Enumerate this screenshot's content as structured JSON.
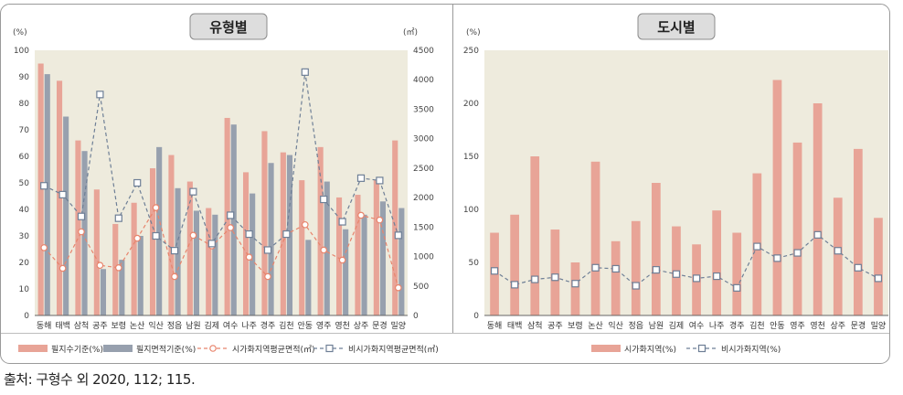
{
  "source_note": "출처: 구형수 외 2020, 112; 115.",
  "colors": {
    "bar_a": "#E8A497",
    "bar_b": "#97A0AE",
    "line_a": "#E8846C",
    "line_b": "#6E7F96",
    "plot_bg": "#EEEBDD",
    "border": "#999999"
  },
  "chart_data": [
    {
      "type": "bar",
      "title": "유형별",
      "y_unit_left": "(%)",
      "y_unit_right": "(㎡)",
      "ylim": [
        0,
        100
      ],
      "y2lim": [
        0,
        4500
      ],
      "yticks": [
        "0",
        "10",
        "20",
        "30",
        "40",
        "50",
        "60",
        "70",
        "80",
        "90",
        "100"
      ],
      "y2ticks": [
        "0",
        "500",
        "1000",
        "1500",
        "2000",
        "2500",
        "3000",
        "3500",
        "4000",
        "4500"
      ],
      "categories": [
        "동해",
        "태백",
        "삼척",
        "공주",
        "보령",
        "논산",
        "익산",
        "정읍",
        "남원",
        "김제",
        "여수",
        "나주",
        "경주",
        "김천",
        "안동",
        "영주",
        "영천",
        "상주",
        "문경",
        "밀양"
      ],
      "series": [
        {
          "name": "필지수기준(%)",
          "kind": "bar",
          "axis": "left",
          "values": [
            95,
            88.5,
            66,
            47.5,
            34.5,
            42.5,
            55.5,
            60.5,
            50.5,
            40.5,
            74.5,
            54,
            69.5,
            61.5,
            51,
            63.5,
            44.5,
            45.5,
            51,
            66
          ]
        },
        {
          "name": "필지면적기준(%)",
          "kind": "bar",
          "axis": "left",
          "values": [
            91,
            75,
            62,
            17.5,
            21,
            30,
            63.5,
            48,
            39.5,
            38,
            72,
            46,
            57.5,
            60.5,
            28.5,
            50.5,
            32.5,
            38,
            43,
            40.5
          ]
        },
        {
          "name": "시가화지역평균면적(㎡)",
          "kind": "line",
          "axis": "right",
          "values": [
            1150,
            800,
            1420,
            850,
            810,
            1310,
            1830,
            660,
            1360,
            1180,
            1490,
            990,
            660,
            1380,
            1540,
            1110,
            940,
            1700,
            1620,
            470
          ]
        },
        {
          "name": "비시가화지역평균면적(㎡)",
          "kind": "line",
          "axis": "right",
          "values": [
            2200,
            2050,
            1680,
            3750,
            1650,
            2250,
            1350,
            1100,
            2100,
            1220,
            1700,
            1380,
            1110,
            1380,
            4130,
            1970,
            1590,
            2330,
            2290,
            1360
          ]
        }
      ]
    },
    {
      "type": "bar",
      "title": "도시별",
      "y_unit_left": "(%)",
      "ylim": [
        0,
        250
      ],
      "yticks": [
        "0",
        "50",
        "100",
        "150",
        "200",
        "250"
      ],
      "categories": [
        "동해",
        "태백",
        "삼척",
        "공주",
        "보령",
        "논산",
        "익산",
        "정읍",
        "남원",
        "김제",
        "여수",
        "나주",
        "경주",
        "김천",
        "안동",
        "영주",
        "영천",
        "상주",
        "문경",
        "밀양"
      ],
      "series": [
        {
          "name": "시가화지역(%)",
          "kind": "bar",
          "values": [
            78,
            95,
            150,
            81,
            50,
            145,
            70,
            89,
            125,
            84,
            67,
            99,
            78,
            134,
            222,
            163,
            200,
            111,
            157,
            92
          ]
        },
        {
          "name": "비시가화지역(%)",
          "kind": "line",
          "values": [
            42,
            29,
            34,
            36,
            30,
            45,
            44,
            28,
            43,
            39,
            35,
            37,
            26,
            65,
            54,
            59,
            76,
            61,
            45,
            35
          ]
        }
      ]
    }
  ]
}
